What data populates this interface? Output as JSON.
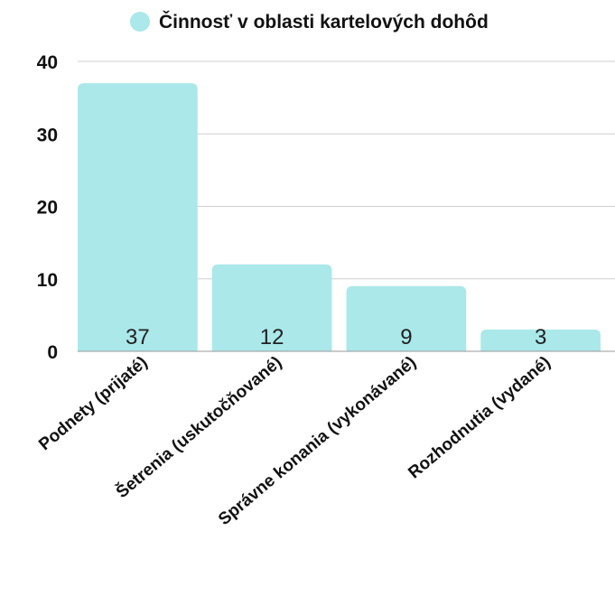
{
  "chart_data": {
    "type": "bar",
    "categories": [
      "Podnety (prijaté)",
      "Šetrenia (uskutočňované)",
      "Správne konania (vykonávané)",
      "Rozhodnutia (vydané)"
    ],
    "series": [
      {
        "name": "Činnosť v oblasti kartelových dohôd",
        "values": [
          37,
          12,
          9,
          3
        ]
      }
    ],
    "yticks": [
      "0",
      "10",
      "20",
      "30",
      "40"
    ],
    "ylim": [
      0,
      40
    ],
    "grid": true,
    "legend": "top-center",
    "colors": {
      "bar": "#abe8ea",
      "legend_marker": "#abe8ea"
    }
  }
}
